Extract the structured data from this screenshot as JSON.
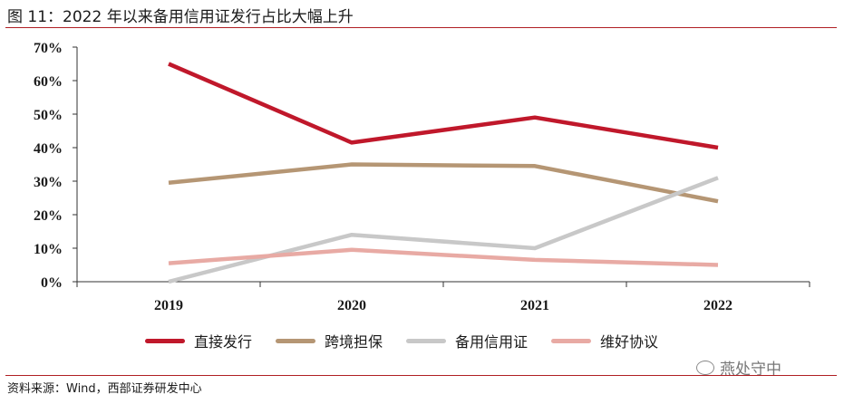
{
  "figure": {
    "title": "图 11：2022 年以来备用信用证发行占比大幅上升",
    "source": "资料来源：Wind，西部证券研发中心",
    "watermark": "燕处守中",
    "watermark_icon": "wechat-icon"
  },
  "chart_data": {
    "type": "line",
    "categories": [
      "2019",
      "2020",
      "2021",
      "2022"
    ],
    "y_tick_labels": [
      "0%",
      "10%",
      "20%",
      "30%",
      "40%",
      "50%",
      "60%",
      "70%"
    ],
    "ylim": [
      0,
      70
    ],
    "y_unit": "%",
    "grid": false,
    "legend_position": "bottom",
    "series": [
      {
        "name": "直接发行",
        "color": "#c0182b",
        "values": [
          65,
          41.5,
          49,
          40
        ]
      },
      {
        "name": "跨境担保",
        "color": "#b59674",
        "values": [
          29.5,
          35,
          34.5,
          24
        ]
      },
      {
        "name": "备用信用证",
        "color": "#c8c8c8",
        "values": [
          0,
          14,
          10,
          31
        ]
      },
      {
        "name": "维好协议",
        "color": "#e8aaa4",
        "values": [
          5.5,
          9.5,
          6.5,
          5
        ]
      }
    ]
  }
}
